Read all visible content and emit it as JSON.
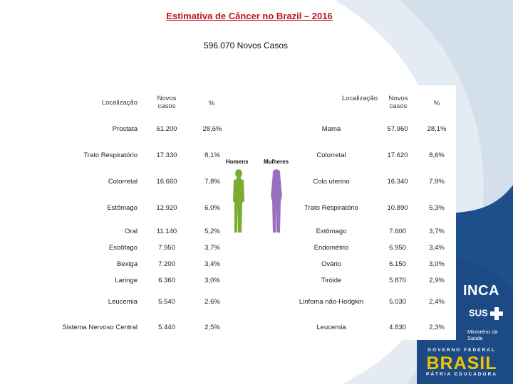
{
  "title": "Estimativa de Câncer no Brazil – 2016",
  "subtitle": "596.070 Novos Casos",
  "headers": {
    "localizacao": "Localização",
    "novos_casos": "Novos casos",
    "percent": "%"
  },
  "figure": {
    "men_label": "Homens",
    "women_label": "Mulheres"
  },
  "men": [
    {
      "loc": "Prostata",
      "casos": "61.200",
      "pct": "28,6%"
    },
    {
      "loc": "Trato Respiratório",
      "casos": "17.330",
      "pct": "8,1%"
    },
    {
      "loc": "Colorretal",
      "casos": "16.660",
      "pct": "7,8%"
    },
    {
      "loc": "Estômago",
      "casos": "12.920",
      "pct": "6,0%"
    },
    {
      "loc": "Oral",
      "casos": "11.140",
      "pct": "5,2%"
    },
    {
      "loc": "Esoôfago",
      "casos": "7.950",
      "pct": "3,7%"
    },
    {
      "loc": "Bexiga",
      "casos": "7.200",
      "pct": "3,4%"
    },
    {
      "loc": "Laringe",
      "casos": "6.360",
      "pct": "3,0%"
    },
    {
      "loc": "Leucemia",
      "casos": "5.540",
      "pct": "2,6%"
    },
    {
      "loc": "Sistema Nervoso Central",
      "casos": "5.440",
      "pct": "2,5%"
    }
  ],
  "women": [
    {
      "loc": "Mama",
      "casos": "57.960",
      "pct": "28,1%"
    },
    {
      "loc": "Colorretal",
      "casos": "17.620",
      "pct": "8,6%"
    },
    {
      "loc": "Colo uterino",
      "casos": "16.340",
      "pct": "7,9%"
    },
    {
      "loc": "Trato Respiratório",
      "casos": "10.890",
      "pct": "5,3%"
    },
    {
      "loc": "Estômago",
      "casos": "7.600",
      "pct": "3,7%"
    },
    {
      "loc": "Endométrio",
      "casos": "6.950",
      "pct": "3,4%"
    },
    {
      "loc": "Ovário",
      "casos": "6.150",
      "pct": "3,0%"
    },
    {
      "loc": "Tiróide",
      "casos": "5.870",
      "pct": "2,9%"
    },
    {
      "loc": "Linfoma não-Hodgkin",
      "casos": "5.030",
      "pct": "2,4%"
    },
    {
      "loc": "Leucemia",
      "casos": "4.830",
      "pct": "2,3%"
    }
  ],
  "logos": {
    "inca": "INCA",
    "sus": "SUS",
    "ministerio_line1": "Ministério da",
    "ministerio_line2": "Saúde",
    "governo": "GOVERNO FEDERAL",
    "brasil": "BRASIL",
    "patria": "PÁTRIA EDUCADORA"
  },
  "colors": {
    "title": "#c0151b",
    "men_figure": "#7dab2f",
    "women_figure": "#9b6fc0",
    "swoosh_light": "#dfe7f1",
    "swoosh_dark": "#1f4f8a",
    "brasil_yellow": "#f2c200"
  }
}
